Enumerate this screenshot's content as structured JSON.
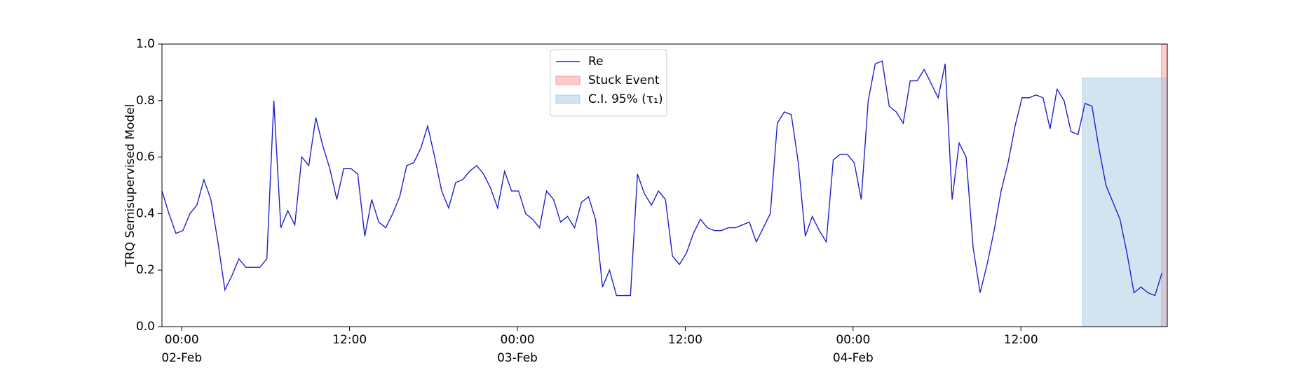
{
  "chart_data": {
    "type": "line",
    "ylabel": "TRQ Semisupervised Model",
    "x": [
      "1900-02-01T22:35",
      "1900-02-01T23:05",
      "1900-02-01T23:35",
      "1900-02-02T00:05",
      "1900-02-02T00:35",
      "1900-02-02T01:05",
      "1900-02-02T01:35",
      "1900-02-02T02:05",
      "1900-02-02T02:35",
      "1900-02-02T03:05",
      "1900-02-02T03:35",
      "1900-02-02T04:05",
      "1900-02-02T04:35",
      "1900-02-02T05:05",
      "1900-02-02T05:35",
      "1900-02-02T06:05",
      "1900-02-02T06:35",
      "1900-02-02T07:05",
      "1900-02-02T07:35",
      "1900-02-02T08:05",
      "1900-02-02T08:35",
      "1900-02-02T09:05",
      "1900-02-02T09:35",
      "1900-02-02T10:05",
      "1900-02-02T10:35",
      "1900-02-02T11:05",
      "1900-02-02T11:35",
      "1900-02-02T12:05",
      "1900-02-02T12:35",
      "1900-02-02T13:05",
      "1900-02-02T13:35",
      "1900-02-02T14:05",
      "1900-02-02T14:35",
      "1900-02-02T15:05",
      "1900-02-02T15:35",
      "1900-02-02T16:05",
      "1900-02-02T16:35",
      "1900-02-02T17:05",
      "1900-02-02T17:35",
      "1900-02-02T18:05",
      "1900-02-02T18:35",
      "1900-02-02T19:05",
      "1900-02-02T19:35",
      "1900-02-02T20:05",
      "1900-02-02T20:35",
      "1900-02-02T21:05",
      "1900-02-02T21:35",
      "1900-02-02T22:05",
      "1900-02-02T22:35",
      "1900-02-02T23:05",
      "1900-02-02T23:35",
      "1900-02-03T00:05",
      "1900-02-03T00:35",
      "1900-02-03T01:05",
      "1900-02-03T01:35",
      "1900-02-03T02:05",
      "1900-02-03T02:35",
      "1900-02-03T03:05",
      "1900-02-03T03:35",
      "1900-02-03T04:05",
      "1900-02-03T04:35",
      "1900-02-03T05:05",
      "1900-02-03T05:35",
      "1900-02-03T06:05",
      "1900-02-03T06:35",
      "1900-02-03T07:05",
      "1900-02-03T07:35",
      "1900-02-03T08:05",
      "1900-02-03T08:35",
      "1900-02-03T09:05",
      "1900-02-03T09:35",
      "1900-02-03T10:05",
      "1900-02-03T10:35",
      "1900-02-03T11:05",
      "1900-02-03T11:35",
      "1900-02-03T12:05",
      "1900-02-03T12:35",
      "1900-02-03T13:05",
      "1900-02-03T13:35",
      "1900-02-03T14:05",
      "1900-02-03T14:35",
      "1900-02-03T15:05",
      "1900-02-03T15:35",
      "1900-02-03T16:05",
      "1900-02-03T16:35",
      "1900-02-03T17:05",
      "1900-02-03T17:35",
      "1900-02-03T18:05",
      "1900-02-03T18:35",
      "1900-02-03T19:05",
      "1900-02-03T19:35",
      "1900-02-03T20:05",
      "1900-02-03T20:35",
      "1900-02-03T21:05",
      "1900-02-03T21:35",
      "1900-02-03T22:05",
      "1900-02-03T22:35",
      "1900-02-03T23:05",
      "1900-02-03T23:35",
      "1900-02-04T00:05",
      "1900-02-04T00:35",
      "1900-02-04T01:05",
      "1900-02-04T01:35",
      "1900-02-04T02:05",
      "1900-02-04T02:35",
      "1900-02-04T03:05",
      "1900-02-04T03:35",
      "1900-02-04T04:05",
      "1900-02-04T04:35",
      "1900-02-04T05:05",
      "1900-02-04T05:35",
      "1900-02-04T06:05",
      "1900-02-04T06:35",
      "1900-02-04T07:05",
      "1900-02-04T07:35",
      "1900-02-04T08:05",
      "1900-02-04T08:35",
      "1900-02-04T09:05",
      "1900-02-04T09:35",
      "1900-02-04T10:05",
      "1900-02-04T10:35",
      "1900-02-04T11:05",
      "1900-02-04T11:35",
      "1900-02-04T12:05",
      "1900-02-04T12:35",
      "1900-02-04T13:05",
      "1900-02-04T13:35",
      "1900-02-04T14:05",
      "1900-02-04T14:35",
      "1900-02-04T15:05",
      "1900-02-04T15:35",
      "1900-02-04T16:05",
      "1900-02-04T16:35",
      "1900-02-04T17:05",
      "1900-02-04T17:35",
      "1900-02-04T18:05",
      "1900-02-04T18:35",
      "1900-02-04T19:05",
      "1900-02-04T19:35",
      "1900-02-04T20:05",
      "1900-02-04T20:35",
      "1900-02-04T21:05",
      "1900-02-04T21:35",
      "1900-02-04T22:05"
    ],
    "series": [
      {
        "name": "Re",
        "color": "#2020d0",
        "values": [
          0.48,
          0.4,
          0.33,
          0.34,
          0.4,
          0.43,
          0.52,
          0.45,
          0.3,
          0.13,
          0.18,
          0.24,
          0.21,
          0.21,
          0.21,
          0.24,
          0.8,
          0.35,
          0.41,
          0.36,
          0.6,
          0.57,
          0.74,
          0.64,
          0.56,
          0.45,
          0.56,
          0.56,
          0.54,
          0.32,
          0.45,
          0.37,
          0.35,
          0.4,
          0.46,
          0.57,
          0.58,
          0.63,
          0.71,
          0.6,
          0.48,
          0.42,
          0.51,
          0.52,
          0.55,
          0.57,
          0.54,
          0.49,
          0.42,
          0.55,
          0.48,
          0.48,
          0.4,
          0.38,
          0.35,
          0.48,
          0.45,
          0.37,
          0.39,
          0.35,
          0.44,
          0.46,
          0.38,
          0.14,
          0.2,
          0.11,
          0.11,
          0.11,
          0.54,
          0.47,
          0.43,
          0.48,
          0.45,
          0.25,
          0.22,
          0.26,
          0.33,
          0.38,
          0.35,
          0.34,
          0.34,
          0.35,
          0.35,
          0.36,
          0.37,
          0.3,
          0.35,
          0.4,
          0.72,
          0.76,
          0.75,
          0.58,
          0.32,
          0.39,
          0.34,
          0.3,
          0.59,
          0.61,
          0.61,
          0.58,
          0.45,
          0.8,
          0.93,
          0.94,
          0.78,
          0.76,
          0.72,
          0.87,
          0.87,
          0.91,
          0.86,
          0.81,
          0.93,
          0.45,
          0.65,
          0.6,
          0.28,
          0.12,
          0.22,
          0.34,
          0.48,
          0.58,
          0.71,
          0.81,
          0.81,
          0.82,
          0.81,
          0.7,
          0.84,
          0.8,
          0.69,
          0.68,
          0.79,
          0.78,
          0.63,
          0.5,
          0.44,
          0.38,
          0.26,
          0.12,
          0.14,
          0.12,
          0.11,
          0.19
        ]
      }
    ],
    "bands": [
      {
        "name": "Stuck Event",
        "color": "#ff9a9a",
        "edge": "#ff6666",
        "x": [
          "1900-02-04T22:03",
          "1900-02-04T22:28"
        ]
      },
      {
        "name": "C.I. 95% (τ₁)",
        "color": "#a9c8e2",
        "edge": "#8fb6d8",
        "x": [
          "1900-02-04T16:24",
          "1900-02-04T22:28"
        ],
        "y": [
          0,
          0.88
        ]
      }
    ],
    "xlim": [
      "1900-02-01T22:35",
      "1900-02-04T22:28"
    ],
    "xticks": [
      {
        "value": "1900-02-02T00:00",
        "label": "00:00\n02-Feb\n1900"
      },
      {
        "value": "1900-02-02T12:00",
        "label": "12:00"
      },
      {
        "value": "1900-02-03T00:00",
        "label": "00:00\n03-Feb"
      },
      {
        "value": "1900-02-03T12:00",
        "label": "12:00"
      },
      {
        "value": "1900-02-04T00:00",
        "label": "00:00\n04-Feb"
      },
      {
        "value": "1900-02-04T12:00",
        "label": "12:00"
      }
    ],
    "ylim": [
      0,
      1
    ],
    "yticks": [
      {
        "value": 0,
        "label": "0.0"
      },
      0.2,
      0.4,
      0.6,
      0.8,
      {
        "value": 1,
        "label": "1.0"
      }
    ],
    "legend_loc": "upper center"
  }
}
